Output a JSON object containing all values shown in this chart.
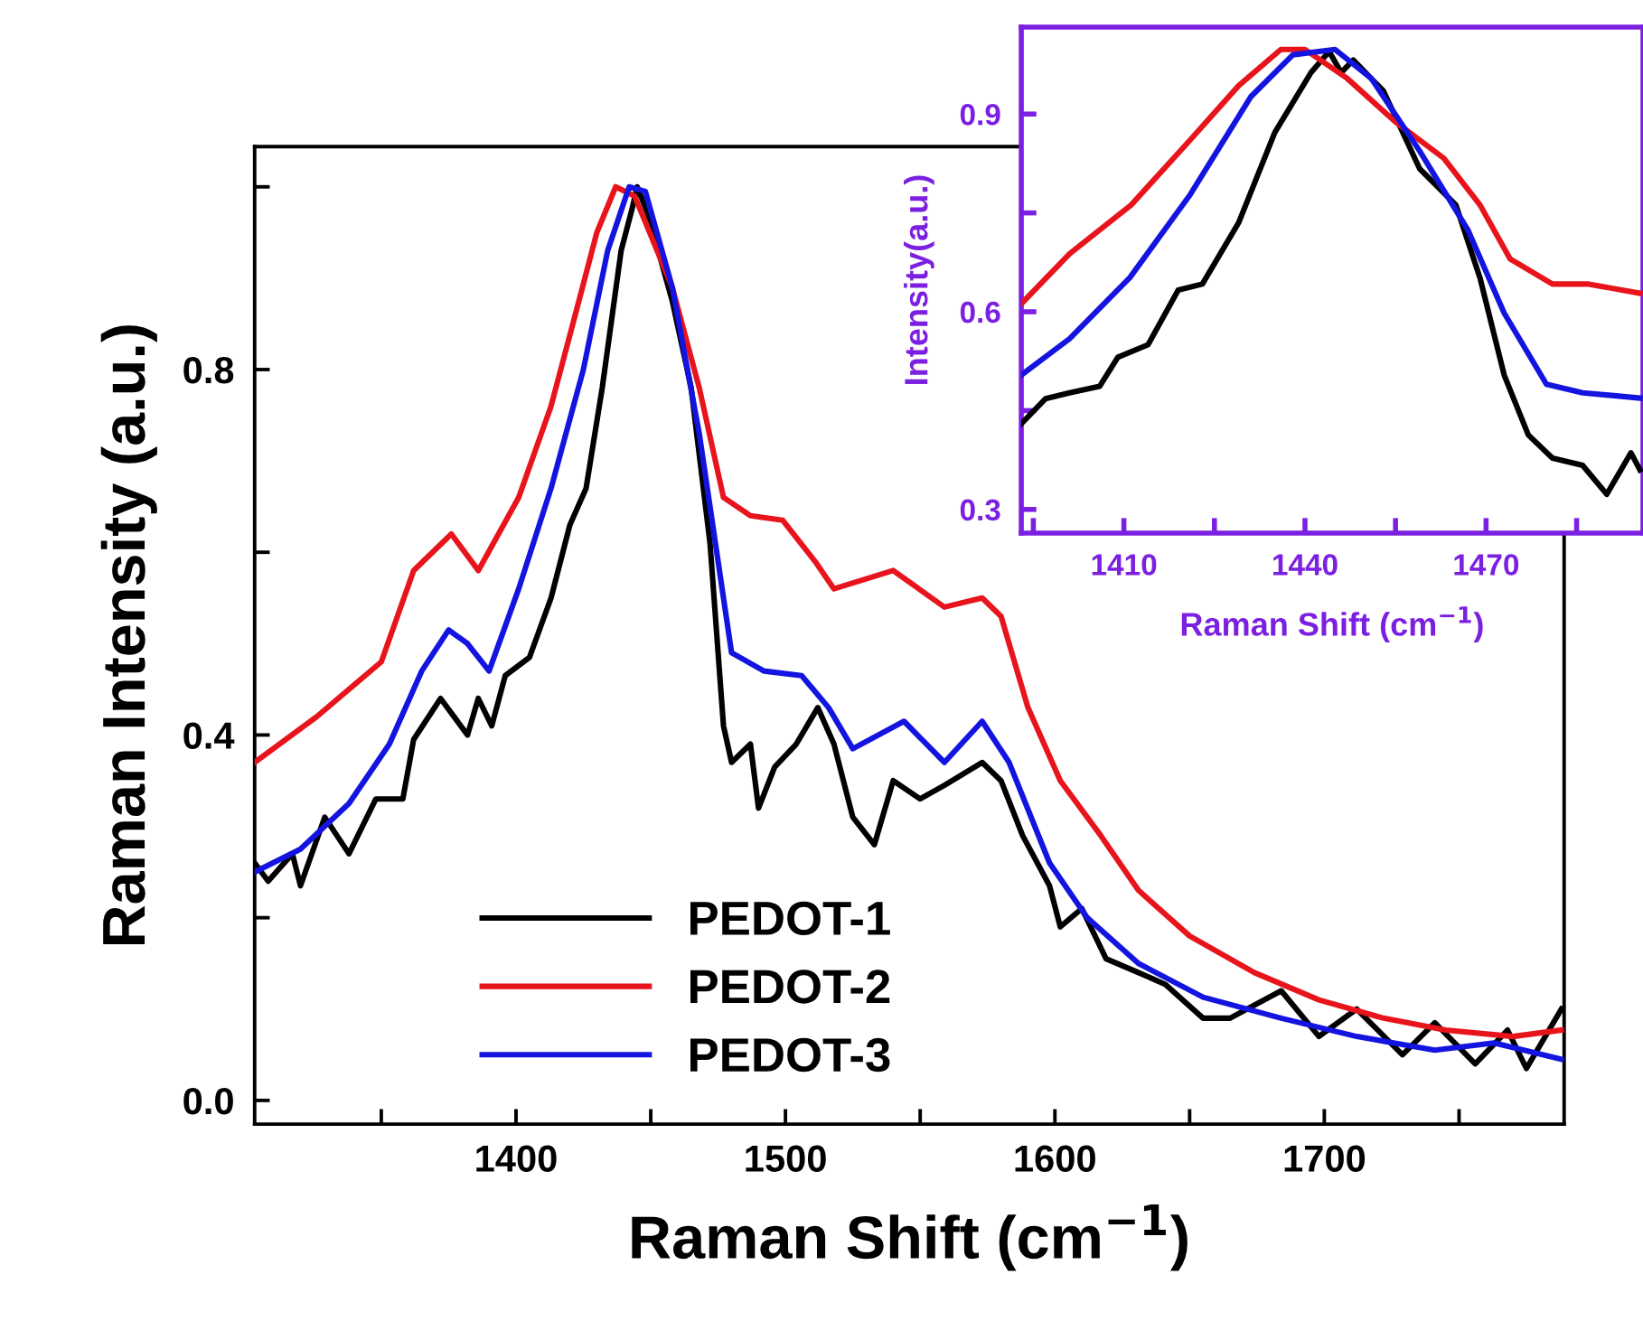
{
  "chart_data": [
    {
      "type": "line",
      "xlabel": "Raman Shift (cm$^{−1}$)",
      "ylabel": "Raman Intensity (a.u.)",
      "xlim": [
        1303,
        1789
      ],
      "ylim": [
        -0.026,
        1.044
      ],
      "xticks": [
        {
          "value": 1350,
          "label": null
        },
        1400,
        {
          "value": 1450,
          "label": null
        },
        1500,
        {
          "value": 1550,
          "label": null
        },
        1600,
        {
          "value": 1650,
          "label": null
        },
        1700,
        {
          "value": 1750,
          "label": null
        }
      ],
      "yticks": [
        {
          "value": 0.0,
          "label": "0.0"
        },
        {
          "value": 0.2,
          "label": null
        },
        0.4,
        {
          "value": 0.6,
          "label": null
        },
        0.8,
        {
          "value": 1.0,
          "label": null
        }
      ],
      "legend": "bottom",
      "grid": false,
      "marker": "none",
      "line_style": "solid",
      "series": [
        {
          "name": "PEDOT-1",
          "color": "#000000",
          "x": [
            1303,
            1308,
            1317,
            1320,
            1329,
            1338,
            1348,
            1358,
            1362,
            1372,
            1382,
            1386,
            1391,
            1396,
            1405,
            1413,
            1420,
            1426,
            1432,
            1439,
            1443,
            1445,
            1449,
            1458,
            1465,
            1472,
            1477,
            1480,
            1487,
            1490,
            1496,
            1504,
            1512,
            1518,
            1525,
            1533,
            1540,
            1550,
            1559,
            1573,
            1580,
            1588,
            1598,
            1602,
            1610,
            1619,
            1631,
            1641,
            1655,
            1665,
            1684,
            1698,
            1712,
            1729,
            1741,
            1756,
            1768,
            1775,
            1788
          ],
          "values": [
            0.26,
            0.24,
            0.27,
            0.235,
            0.31,
            0.27,
            0.33,
            0.33,
            0.395,
            0.44,
            0.4,
            0.44,
            0.41,
            0.465,
            0.485,
            0.55,
            0.63,
            0.67,
            0.78,
            0.93,
            0.975,
            1.0,
            0.97,
            0.875,
            0.78,
            0.61,
            0.41,
            0.37,
            0.39,
            0.32,
            0.365,
            0.39,
            0.43,
            0.39,
            0.31,
            0.28,
            0.35,
            0.33,
            0.345,
            0.37,
            0.35,
            0.29,
            0.235,
            0.19,
            0.21,
            0.155,
            0.14,
            0.127,
            0.09,
            0.09,
            0.12,
            0.07,
            0.1,
            0.05,
            0.085,
            0.04,
            0.077,
            0.035,
            0.1
          ]
        },
        {
          "name": "PEDOT-2",
          "color": "#e8141c",
          "x": [
            1303,
            1326,
            1350,
            1362,
            1376,
            1386,
            1401,
            1413,
            1422,
            1430,
            1437,
            1444,
            1458,
            1468,
            1477,
            1487,
            1499,
            1511,
            1518,
            1540,
            1559,
            1573,
            1580,
            1590,
            1602,
            1617,
            1631,
            1650,
            1674,
            1698,
            1722,
            1745,
            1770,
            1788
          ],
          "values": [
            0.37,
            0.42,
            0.48,
            0.58,
            0.62,
            0.58,
            0.66,
            0.76,
            0.86,
            0.95,
            1.0,
            0.99,
            0.89,
            0.78,
            0.66,
            0.64,
            0.635,
            0.59,
            0.56,
            0.58,
            0.54,
            0.55,
            0.53,
            0.43,
            0.35,
            0.29,
            0.23,
            0.18,
            0.14,
            0.11,
            0.09,
            0.077,
            0.07,
            0.077
          ]
        },
        {
          "name": "PEDOT-3",
          "color": "#1414e0",
          "x": [
            1303,
            1320,
            1338,
            1353,
            1365,
            1375,
            1382,
            1390,
            1401,
            1413,
            1425,
            1434,
            1442,
            1448,
            1458,
            1468,
            1480,
            1492,
            1506,
            1516,
            1525,
            1544,
            1559,
            1573,
            1583,
            1598,
            1612,
            1631,
            1655,
            1684,
            1712,
            1741,
            1763,
            1788
          ],
          "values": [
            0.25,
            0.275,
            0.325,
            0.39,
            0.47,
            0.515,
            0.5,
            0.47,
            0.56,
            0.67,
            0.8,
            0.93,
            1.0,
            0.995,
            0.89,
            0.73,
            0.49,
            0.47,
            0.465,
            0.43,
            0.385,
            0.415,
            0.37,
            0.415,
            0.37,
            0.26,
            0.2,
            0.15,
            0.113,
            0.09,
            0.07,
            0.055,
            0.063,
            0.045
          ]
        }
      ]
    },
    {
      "type": "line",
      "xlabel": "Raman Shift (cm$^{−1}$)",
      "ylabel": "Intensity(a.u.)",
      "xlim": [
        1393,
        1496
      ],
      "ylim": [
        0.264,
        1.032
      ],
      "xticks": [
        {
          "value": 1395,
          "label": null
        },
        1410,
        {
          "value": 1425,
          "label": null
        },
        1440,
        {
          "value": 1455,
          "label": null
        },
        1470,
        {
          "value": 1485,
          "label": null
        }
      ],
      "yticks": [
        0.3,
        {
          "value": 0.45,
          "label": null
        },
        0.6,
        {
          "value": 0.75,
          "label": null
        },
        0.9
      ],
      "grid": false,
      "marker": "none",
      "line_style": "solid",
      "series": [
        {
          "color": "#000000",
          "x": [
            1393,
            1397,
            1401,
            1406,
            1409,
            1414,
            1419,
            1423,
            1429,
            1435,
            1441,
            1444,
            1446,
            1448,
            1453,
            1459,
            1465,
            1469,
            1473,
            1477,
            1481,
            1486,
            1490,
            1494,
            1495.5
          ],
          "values": [
            0.43,
            0.468,
            0.477,
            0.487,
            0.531,
            0.55,
            0.633,
            0.642,
            0.735,
            0.872,
            0.963,
            0.995,
            0.963,
            0.982,
            0.935,
            0.817,
            0.762,
            0.651,
            0.504,
            0.413,
            0.378,
            0.367,
            0.323,
            0.386,
            0.36
          ]
        },
        {
          "color": "#e8141c",
          "x": [
            1393.2,
            1401,
            1411.2,
            1421,
            1429,
            1436,
            1440,
            1447,
            1455,
            1463,
            1469,
            1474,
            1481,
            1487,
            1495.5
          ],
          "values": [
            0.614,
            0.688,
            0.762,
            0.861,
            0.943,
            0.998,
            0.998,
            0.954,
            0.888,
            0.833,
            0.762,
            0.68,
            0.642,
            0.642,
            0.628
          ]
        },
        {
          "color": "#1414e0",
          "x": [
            1393,
            1401,
            1411,
            1421,
            1431,
            1438,
            1445,
            1451,
            1459,
            1467,
            1473,
            1480,
            1486,
            1495.5
          ],
          "values": [
            0.504,
            0.559,
            0.652,
            0.778,
            0.926,
            0.99,
            0.998,
            0.954,
            0.844,
            0.724,
            0.598,
            0.49,
            0.477,
            0.469
          ]
        }
      ]
    }
  ]
}
